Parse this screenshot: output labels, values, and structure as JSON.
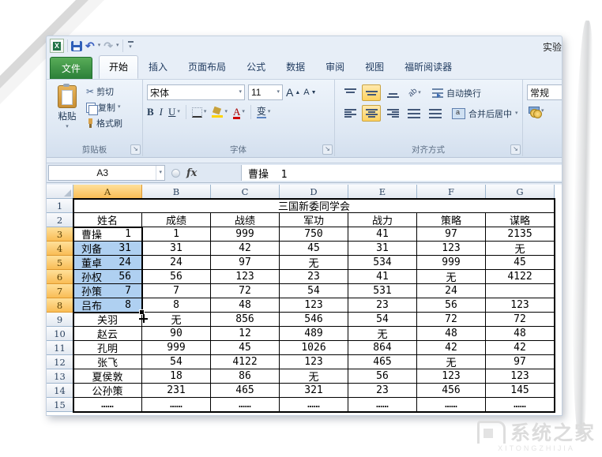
{
  "window": {
    "title": "实验"
  },
  "tabs": {
    "file": "文件",
    "items": [
      "开始",
      "插入",
      "页面布局",
      "公式",
      "数据",
      "审阅",
      "视图",
      "福昕阅读器"
    ],
    "active": "开始"
  },
  "ribbon": {
    "clipboard": {
      "group": "剪贴板",
      "paste": "粘贴",
      "cut": "剪切",
      "copy": "复制",
      "format_painter": "格式刷"
    },
    "font": {
      "group": "字体",
      "font_name": "宋体",
      "font_size": "11",
      "bold": "B",
      "italic": "I",
      "underline": "U",
      "grow": "A",
      "shrink": "A",
      "phonetic": "变",
      "font_color_letter": "A"
    },
    "alignment": {
      "group": "对齐方式",
      "wrap_text": "自动换行",
      "merge_center": "合并后居中",
      "orientation_label": "ab"
    },
    "number": {
      "format": "常规"
    }
  },
  "formula_bar": {
    "name_box": "A3",
    "fx_label": "fx",
    "content": "曹操  1"
  },
  "sheet": {
    "col_headers": [
      "A",
      "B",
      "C",
      "D",
      "E",
      "F",
      "G"
    ],
    "selected_col": "A",
    "row_numbers": [
      1,
      2,
      3,
      4,
      5,
      6,
      7,
      8,
      9,
      10,
      11,
      12,
      13,
      14,
      15
    ],
    "selected_rows": [
      3,
      4,
      5,
      6,
      7,
      8
    ],
    "title": "三国新委同学会",
    "headers": [
      "姓名",
      "成绩",
      "战绩",
      "军功",
      "战力",
      "策略",
      "谋略"
    ],
    "rows": [
      {
        "r": 3,
        "name": "曹操",
        "num": "1",
        "active": true,
        "vals": [
          "1",
          "999",
          "750",
          "41",
          "97",
          "2135"
        ]
      },
      {
        "r": 4,
        "name": "刘备",
        "num": "31",
        "sel": true,
        "vals": [
          "31",
          "42",
          "45",
          "31",
          "123",
          "无"
        ]
      },
      {
        "r": 5,
        "name": "董卓",
        "num": "24",
        "sel": true,
        "vals": [
          "24",
          "97",
          "无",
          "534",
          "999",
          "45"
        ]
      },
      {
        "r": 6,
        "name": "孙权",
        "num": "56",
        "sel": true,
        "vals": [
          "56",
          "123",
          "23",
          "41",
          "无",
          "4122"
        ]
      },
      {
        "r": 7,
        "name": "孙策",
        "num": "7",
        "sel": true,
        "vals": [
          "7",
          "72",
          "54",
          "531",
          "24",
          ""
        ]
      },
      {
        "r": 8,
        "name": "吕布",
        "num": "8",
        "sel": true,
        "vals": [
          "8",
          "48",
          "123",
          "23",
          "56",
          "123"
        ]
      },
      {
        "r": 9,
        "name": "关羽",
        "vals": [
          "无",
          "856",
          "546",
          "54",
          "72",
          "72"
        ]
      },
      {
        "r": 10,
        "name": "赵云",
        "vals": [
          "90",
          "12",
          "489",
          "无",
          "48",
          "48"
        ]
      },
      {
        "r": 11,
        "name": "孔明",
        "vals": [
          "999",
          "45",
          "1026",
          "864",
          "42",
          "42"
        ]
      },
      {
        "r": 12,
        "name": "张飞",
        "vals": [
          "54",
          "4122",
          "123",
          "465",
          "无",
          "97"
        ]
      },
      {
        "r": 13,
        "name": "夏侯敦",
        "vals": [
          "18",
          "86",
          "无",
          "56",
          "123",
          "123"
        ]
      },
      {
        "r": 14,
        "name": "公孙策",
        "vals": [
          "231",
          "465",
          "321",
          "23",
          "456",
          "145"
        ]
      },
      {
        "r": 15,
        "name": "……",
        "vals": [
          "……",
          "……",
          "……",
          "……",
          "……",
          "……"
        ]
      }
    ]
  },
  "watermark": {
    "text": "系统之家",
    "sub": "XITONGZHIJIA"
  },
  "colors": {
    "selection_fill": "#afd0f1",
    "header_selected": "#f9bd56",
    "file_tab_green": "#2b7f38",
    "toggle_highlight": "#ffd25f"
  }
}
